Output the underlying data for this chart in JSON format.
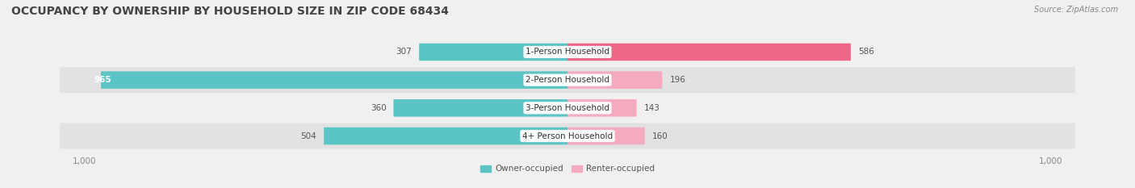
{
  "title": "OCCUPANCY BY OWNERSHIP BY HOUSEHOLD SIZE IN ZIP CODE 68434",
  "source": "Source: ZipAtlas.com",
  "categories": [
    "1-Person Household",
    "2-Person Household",
    "3-Person Household",
    "4+ Person Household"
  ],
  "owner_values": [
    307,
    965,
    360,
    504
  ],
  "renter_values": [
    586,
    196,
    143,
    160
  ],
  "owner_color": "#5BC4C4",
  "renter_color": "#F06090",
  "renter_color_light": "#F4A8C0",
  "background_color": "#f0f0f0",
  "band_color_dark": "#e4e4e4",
  "band_color_light": "#f5f5f5",
  "axis_max": 1000,
  "legend_owner": "Owner-occupied",
  "legend_renter": "Renter-occupied",
  "title_fontsize": 10,
  "label_fontsize": 7.5,
  "tick_fontsize": 7.5,
  "bar_height": 0.62,
  "figsize": [
    14.06,
    2.33
  ],
  "dpi": 100
}
